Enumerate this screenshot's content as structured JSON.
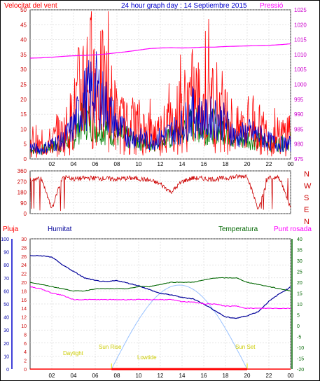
{
  "title": "24 hour graph day : 14 Septiembre 2015",
  "colors": {
    "wind": "#ff0000",
    "gust": "#0000cc",
    "green": "#008000",
    "pressure": "#ff00ff",
    "direction": "#cc0000",
    "humidity": "#000099",
    "temperature": "#006600",
    "dewpoint": "#ff00ff",
    "rain": "#ff0000",
    "sun": "#99c2ff",
    "daylight": "#e6e600"
  },
  "x_ticks": [
    "02",
    "04",
    "06",
    "08",
    "10",
    "12",
    "14",
    "16",
    "18",
    "20",
    "22",
    "00"
  ],
  "top": {
    "left_label": "Velocitat del vent",
    "right_label": "Pressió",
    "left_ticks": [
      "0",
      "5",
      "10",
      "15",
      "20",
      "25",
      "30",
      "35",
      "40",
      "45",
      "50"
    ],
    "right_ticks": [
      "975",
      "980",
      "985",
      "990",
      "995",
      "1000",
      "1005",
      "1010",
      "1015",
      "1020",
      "1025"
    ]
  },
  "mid": {
    "left_ticks": [
      "0",
      "90",
      "180",
      "270",
      "360"
    ],
    "compass": [
      "N",
      "W",
      "S",
      "E",
      "N"
    ]
  },
  "bottom": {
    "rain_label": "Pluja",
    "hum_label": "Humitat",
    "temp_label": "Temperatura",
    "dew_label": "Punt rosada",
    "rain_ticks": [
      "0",
      "2",
      "4",
      "6",
      "8",
      "10",
      "12",
      "14",
      "16",
      "18",
      "20",
      "22",
      "24",
      "26",
      "28",
      "30"
    ],
    "hum_ticks": [
      "0",
      "10",
      "20",
      "30",
      "40",
      "50",
      "60",
      "70",
      "80",
      "90",
      "100"
    ],
    "temp_ticks": [
      "-20",
      "-15",
      "-10",
      "-5",
      "0",
      "5",
      "10",
      "15",
      "20",
      "25",
      "30",
      "35",
      "40"
    ],
    "annotations": [
      "Daylight",
      "Sun Rise",
      "Lowtide",
      "Sun Set"
    ]
  },
  "chart_data": [
    {
      "type": "line",
      "title": "24 hour graph day : 14 Septiembre 2015",
      "xlabel": "",
      "x": [
        0,
        1,
        2,
        3,
        4,
        5,
        6,
        7,
        8,
        9,
        10,
        11,
        12,
        13,
        14,
        15,
        16,
        17,
        18,
        19,
        20,
        21,
        22,
        23,
        24
      ],
      "xlim": [
        0,
        24
      ],
      "ylim": [
        0,
        50
      ],
      "y2lim": [
        975,
        1025
      ],
      "series": [
        {
          "name": "Velocitat del vent",
          "axis": "left",
          "values": [
            5,
            4,
            6,
            8,
            14,
            28,
            25,
            22,
            13,
            10,
            11,
            8,
            9,
            11,
            16,
            20,
            17,
            19,
            15,
            9,
            12,
            10,
            8,
            7,
            10
          ]
        },
        {
          "name": "",
          "axis": "left",
          "values": [
            4,
            3,
            5,
            6,
            11,
            20,
            24,
            18,
            11,
            8,
            7,
            6,
            7,
            9,
            11,
            16,
            13,
            14,
            12,
            7,
            9,
            8,
            6,
            5,
            5
          ]
        },
        {
          "name": "",
          "axis": "left",
          "values": [
            3,
            3,
            4,
            5,
            7,
            14,
            11,
            10,
            8,
            7,
            6,
            5,
            6,
            7,
            9,
            12,
            10,
            11,
            10,
            6,
            7,
            6,
            5,
            5,
            6
          ]
        },
        {
          "name": "Pressió",
          "axis": "right",
          "values": [
            1008.8,
            1008.9,
            1009.1,
            1009.4,
            1009.6,
            1009.7,
            1009.9,
            1010.2,
            1010.6,
            1011.0,
            1011.5,
            1012.0,
            1012.2,
            1012.3,
            1012.2,
            1012.3,
            1012.5,
            1012.5,
            1012.7,
            1012.8,
            1012.9,
            1013.0,
            1013.1,
            1013.3,
            1013.6
          ]
        }
      ]
    },
    {
      "type": "scatter",
      "title": "",
      "x": [
        0,
        1,
        2,
        3,
        4,
        5,
        6,
        7,
        8,
        9,
        10,
        11,
        12,
        13,
        14,
        15,
        16,
        17,
        18,
        19,
        20,
        21,
        22,
        23,
        24
      ],
      "xlim": [
        0,
        24
      ],
      "ylim": [
        0,
        360
      ],
      "series": [
        {
          "name": "",
          "values": [
            290,
            300,
            40,
            310,
            290,
            300,
            300,
            295,
            290,
            300,
            295,
            280,
            250,
            180,
            270,
            300,
            295,
            290,
            300,
            310,
            320,
            40,
            310,
            300,
            45
          ]
        }
      ]
    },
    {
      "type": "line",
      "title": "",
      "x": [
        0,
        1,
        2,
        3,
        4,
        5,
        6,
        7,
        8,
        9,
        10,
        11,
        12,
        13,
        14,
        15,
        16,
        17,
        18,
        19,
        20,
        21,
        22,
        23,
        24
      ],
      "xlim": [
        0,
        24
      ],
      "ylim": [
        0,
        100
      ],
      "y_rain_lim": [
        0,
        30
      ],
      "y_temp_lim": [
        -20,
        40
      ],
      "series": [
        {
          "name": "Humitat",
          "axis": "humidity",
          "values": [
            87,
            87,
            86,
            80,
            75,
            70,
            68,
            67,
            68,
            66,
            64,
            61,
            58,
            57,
            55,
            54,
            50,
            45,
            40,
            39,
            41,
            44,
            52,
            58,
            63
          ]
        },
        {
          "name": "Temperatura",
          "axis": "temperature",
          "values": [
            20,
            19,
            18,
            17,
            16,
            16,
            17,
            17,
            17,
            17,
            18,
            18,
            19,
            20,
            20,
            20,
            21,
            22,
            22,
            22,
            20,
            19,
            18,
            17,
            16
          ]
        },
        {
          "name": "Punt rosada",
          "axis": "temperature",
          "values": [
            18,
            17,
            15,
            14,
            12,
            12,
            12,
            12,
            12,
            12,
            12,
            12,
            12,
            12,
            11,
            11,
            10,
            10,
            9,
            9,
            8,
            8,
            8,
            8,
            8
          ]
        },
        {
          "name": "Pluja",
          "axis": "rain",
          "values": [
            0,
            0,
            0,
            0,
            0,
            0,
            0,
            0,
            0,
            0,
            0,
            0,
            0,
            0,
            0,
            0,
            0,
            0,
            0,
            0,
            0,
            0,
            0,
            0,
            0
          ]
        }
      ]
    }
  ]
}
